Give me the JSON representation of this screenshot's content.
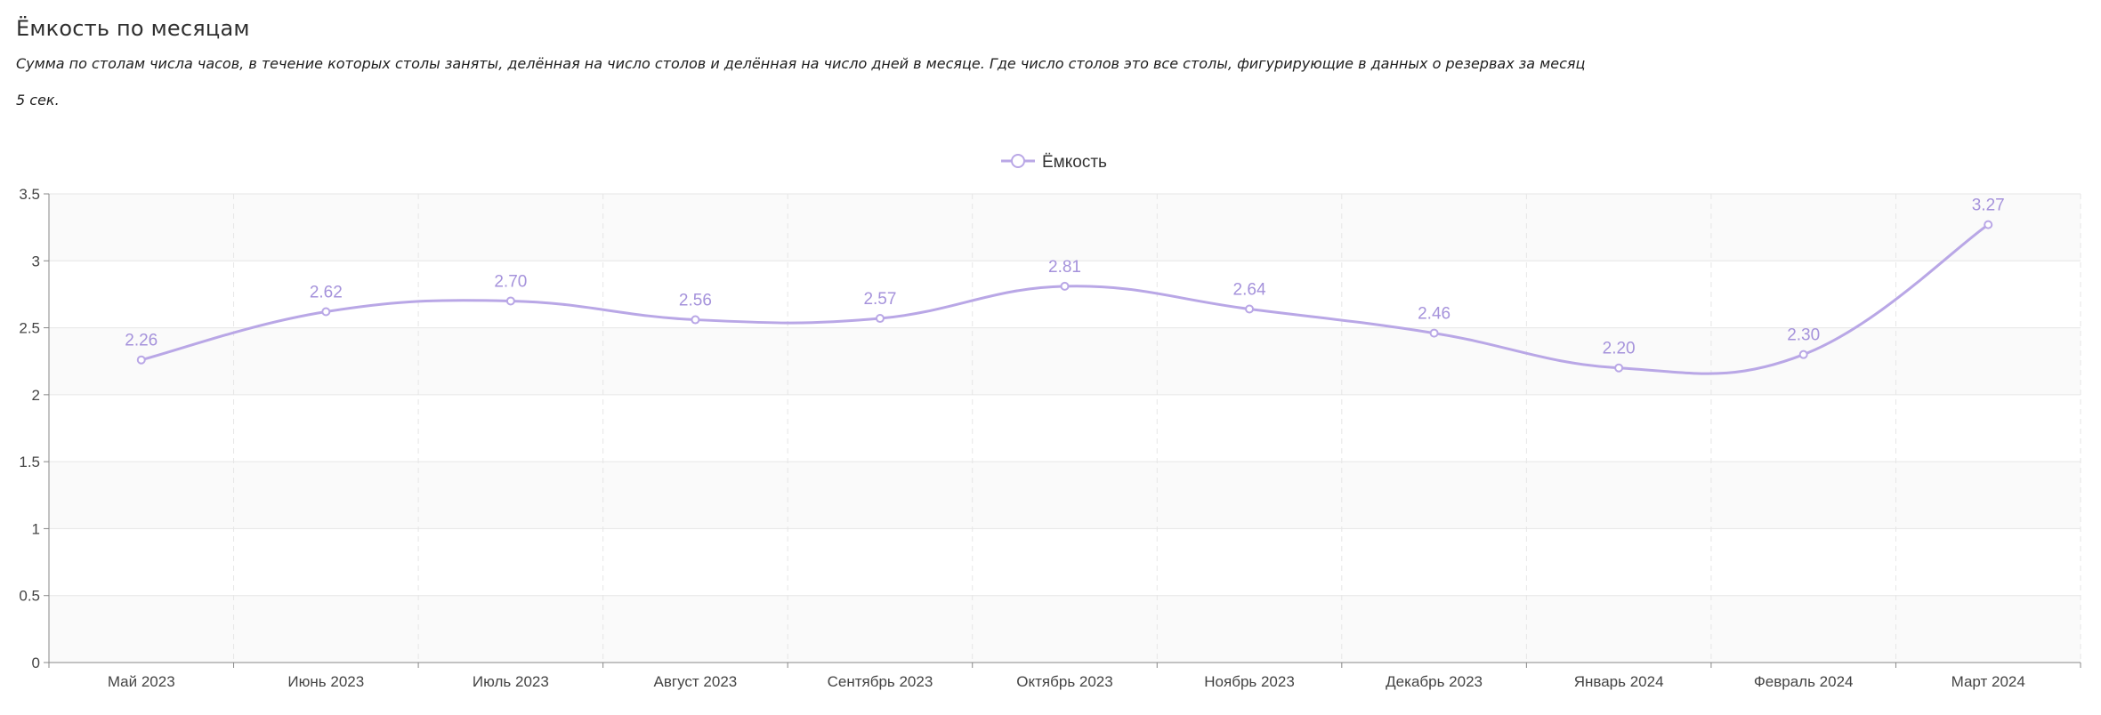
{
  "header": {
    "title": "Ёмкость по месяцам",
    "subtitle": "Сумма по столам числа часов, в течение которых столы заняты, делённая на число столов и делённая на число дней в месяце. Где число столов это все столы, фигурирующие в данных о резервах за месяц",
    "timing": "5 сек."
  },
  "colors": {
    "series": "#b9a7e6",
    "label": "#a592db",
    "band": "#fafafa",
    "grid": "#e6e6e6",
    "axis": "#888888"
  },
  "chart_data": {
    "type": "line",
    "smooth": true,
    "categories": [
      "Май 2023",
      "Июнь 2023",
      "Июль 2023",
      "Август 2023",
      "Сентябрь 2023",
      "Октябрь 2023",
      "Ноябрь 2023",
      "Декабрь 2023",
      "Январь 2024",
      "Февраль 2024",
      "Март 2024"
    ],
    "series": [
      {
        "name": "Ёмкость",
        "values": [
          2.26,
          2.62,
          2.7,
          2.56,
          2.57,
          2.81,
          2.64,
          2.46,
          2.2,
          2.3,
          3.27
        ],
        "labels": [
          "2.26",
          "2.62",
          "2.70",
          "2.56",
          "2.57",
          "2.81",
          "2.64",
          "2.46",
          "2.20",
          "2.30",
          "3.27"
        ]
      }
    ],
    "yticks": [
      "0",
      "0.5",
      "1",
      "1.5",
      "2",
      "2.5",
      "3",
      "3.5"
    ],
    "ylim": [
      0,
      3.5
    ],
    "grid": true,
    "alternating_bands": true,
    "legend_position": "top-center",
    "data_labels": true
  }
}
